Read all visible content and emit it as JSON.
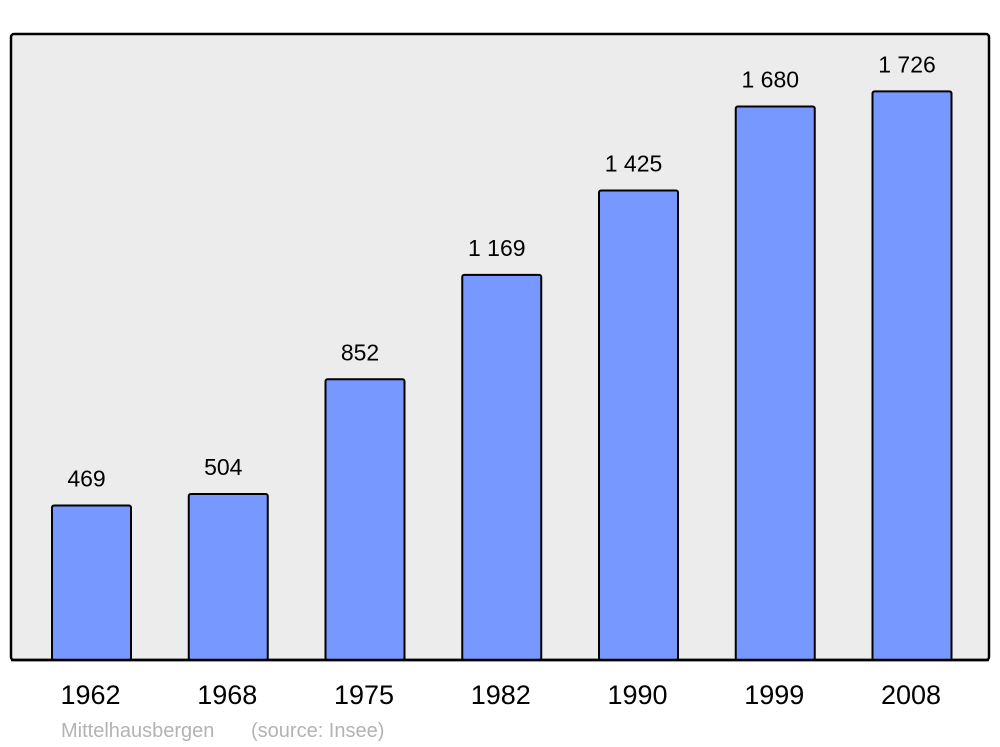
{
  "chart_data": {
    "type": "bar",
    "categories": [
      "1962",
      "1968",
      "1975",
      "1982",
      "1990",
      "1999",
      "2008"
    ],
    "values": [
      469,
      504,
      852,
      1169,
      1425,
      1680,
      1726
    ],
    "value_labels": [
      "469",
      "504",
      "852",
      "1 169",
      "1 425",
      "1 680",
      "1 726"
    ],
    "title": "",
    "xlabel": "",
    "ylabel": "",
    "ylim": [
      0,
      1900
    ],
    "grid": false,
    "caption": {
      "place": "Mittelhausbergen",
      "source": "(source: Insee)"
    },
    "colors": {
      "bar": "#7799ff",
      "plot_background": "#ececec",
      "caption": "#b3b3b3"
    }
  }
}
